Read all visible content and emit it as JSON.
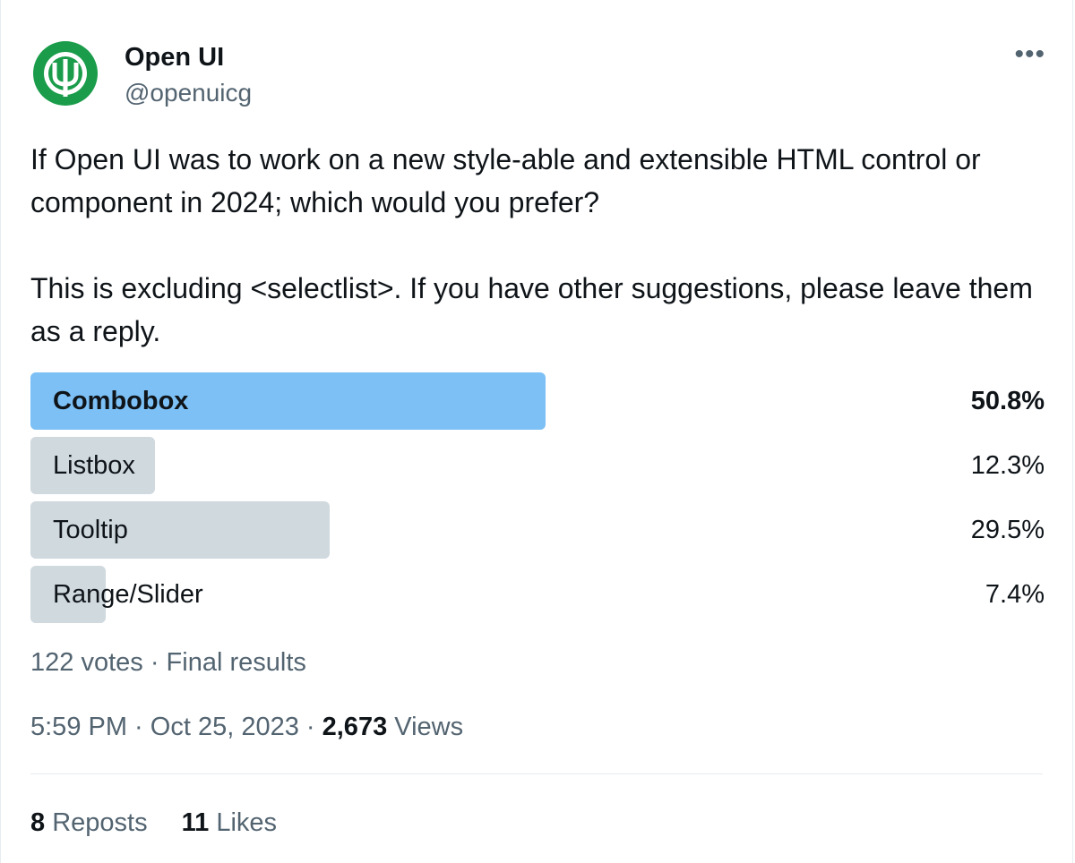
{
  "author": {
    "name": "Open UI",
    "handle": "@openuicg",
    "avatar_icon": "open-ui-logo-icon",
    "brand_color": "#1a9c4a"
  },
  "more_icon": "more-horizontal-icon",
  "tweet": {
    "paragraphs": [
      "If Open UI was to work on a new style-able and extensible HTML control or component in 2024; which would you prefer?",
      "This is excluding <selectlist>. If you have other suggestions, please leave them as a reply."
    ]
  },
  "poll": {
    "options": [
      {
        "label": "Combobox",
        "percent_text": "50.8%",
        "percent": 50.8,
        "winner": true
      },
      {
        "label": "Listbox",
        "percent_text": "12.3%",
        "percent": 12.3,
        "winner": false
      },
      {
        "label": "Tooltip",
        "percent_text": "29.5%",
        "percent": 29.5,
        "winner": false
      },
      {
        "label": "Range/Slider",
        "percent_text": "7.4%",
        "percent": 7.4,
        "winner": false
      }
    ],
    "votes": "122 votes",
    "separator": " · ",
    "status": "Final results",
    "winner_color": "#7cc0f5",
    "bar_color": "#cfd9de"
  },
  "meta": {
    "time": "5:59 PM",
    "date": "Oct 25, 2023",
    "separator": " · ",
    "views_count": "2,673",
    "views_label": "Views"
  },
  "stats": {
    "reposts_count": "8",
    "reposts_label": "Reposts",
    "likes_count": "11",
    "likes_label": "Likes"
  }
}
